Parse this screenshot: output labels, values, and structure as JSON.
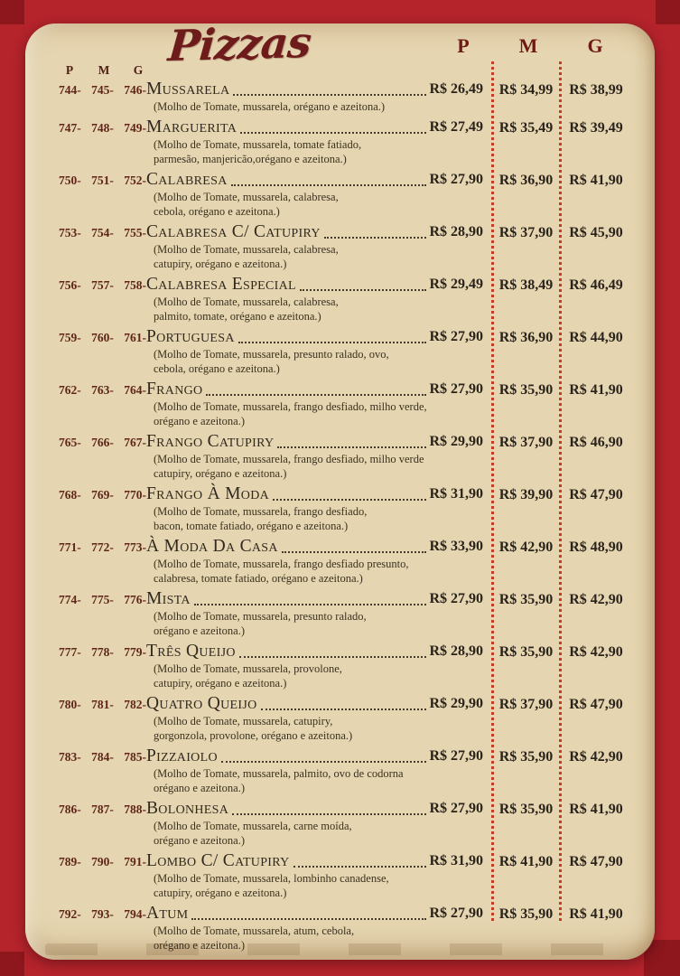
{
  "header": {
    "title": "Pizzas",
    "left_size_headers": [
      "P",
      "M",
      "G"
    ],
    "right_size_headers": [
      "P",
      "M",
      "G"
    ]
  },
  "colors": {
    "frame_red": "#b5232b",
    "frame_red_dark": "#8e161d",
    "parchment": "#e5d5b0",
    "title_maroon": "#6e1c1b",
    "code_brown": "#5f2519",
    "text_dark": "#2a231c",
    "divider_dotted_red": "#c63b26"
  },
  "menu": {
    "items": [
      {
        "codes": [
          "744-",
          "745-",
          "746-"
        ],
        "name": "Mussarela",
        "desc": [
          "(Molho de Tomate, mussarela, orégano e azeitona.)"
        ],
        "price_p": "R$ 26,49",
        "price_m": "R$ 34,99",
        "price_g": "R$ 38,99"
      },
      {
        "codes": [
          "747-",
          "748-",
          "749-"
        ],
        "name": "Marguerita",
        "desc": [
          "(Molho de Tomate, mussarela, tomate fatiado,",
          "parmesão, manjericão,orégano e azeitona.)"
        ],
        "price_p": "R$ 27,49",
        "price_m": "R$ 35,49",
        "price_g": "R$ 39,49"
      },
      {
        "codes": [
          "750-",
          "751-",
          "752-"
        ],
        "name": "Calabresa",
        "desc": [
          "(Molho de Tomate, mussarela, calabresa,",
          "cebola, orégano e azeitona.)"
        ],
        "price_p": "R$ 27,90",
        "price_m": "R$ 36,90",
        "price_g": "R$ 41,90"
      },
      {
        "codes": [
          "753-",
          "754-",
          "755-"
        ],
        "name": "Calabresa C/ Catupiry",
        "desc": [
          "(Molho de Tomate, mussarela, calabresa,",
          "catupiry, orégano e azeitona.)"
        ],
        "price_p": "R$ 28,90",
        "price_m": "R$ 37,90",
        "price_g": "R$ 45,90"
      },
      {
        "codes": [
          "756-",
          "757-",
          "758-"
        ],
        "name": "Calabresa Especial",
        "desc": [
          "(Molho de Tomate, mussarela, calabresa,",
          "palmito, tomate, orégano e azeitona.)"
        ],
        "price_p": "R$ 29,49",
        "price_m": "R$ 38,49",
        "price_g": "R$ 46,49"
      },
      {
        "codes": [
          "759-",
          "760-",
          "761-"
        ],
        "name": "Portuguesa",
        "desc": [
          "(Molho de Tomate, mussarela, presunto ralado, ovo,",
          "cebola, orégano e azeitona.)"
        ],
        "price_p": "R$ 27,90",
        "price_m": "R$ 36,90",
        "price_g": "R$ 44,90"
      },
      {
        "codes": [
          "762-",
          "763-",
          "764-"
        ],
        "name": "Frango",
        "desc": [
          "(Molho de Tomate, mussarela, frango desfiado, milho verde,",
          "orégano e azeitona.)"
        ],
        "price_p": "R$ 27,90",
        "price_m": "R$ 35,90",
        "price_g": "R$ 41,90"
      },
      {
        "codes": [
          "765-",
          "766-",
          "767-"
        ],
        "name": "Frango Catupiry",
        "desc": [
          "(Molho de Tomate, mussarela, frango desfiado, milho verde",
          "catupiry, orégano e azeitona.)"
        ],
        "price_p": "R$ 29,90",
        "price_m": "R$ 37,90",
        "price_g": "R$ 46,90"
      },
      {
        "codes": [
          "768-",
          "769-",
          "770-"
        ],
        "name": "Frango À Moda",
        "desc": [
          "(Molho de Tomate, mussarela, frango desfiado,",
          "bacon, tomate fatiado, orégano e azeitona.)"
        ],
        "price_p": "R$ 31,90",
        "price_m": "R$ 39,90",
        "price_g": "R$ 47,90"
      },
      {
        "codes": [
          "771-",
          "772-",
          "773-"
        ],
        "name": "À Moda Da Casa",
        "desc": [
          "(Molho de Tomate, mussarela, frango desfiado presunto,",
          "calabresa, tomate fatiado, orégano e azeitona.)"
        ],
        "price_p": "R$ 33,90",
        "price_m": "R$ 42,90",
        "price_g": "R$ 48,90"
      },
      {
        "codes": [
          "774-",
          "775-",
          "776-"
        ],
        "name": "Mista",
        "desc": [
          "(Molho de Tomate, mussarela, presunto ralado,",
          "orégano e azeitona.)"
        ],
        "price_p": "R$ 27,90",
        "price_m": "R$ 35,90",
        "price_g": "R$ 42,90"
      },
      {
        "codes": [
          "777-",
          "778-",
          "779-"
        ],
        "name": "Três Queijo",
        "desc": [
          "(Molho de Tomate, mussarela, provolone,",
          "catupiry, orégano e azeitona.)"
        ],
        "price_p": "R$ 28,90",
        "price_m": "R$ 35,90",
        "price_g": "R$ 42,90"
      },
      {
        "codes": [
          "780-",
          "781-",
          "782-"
        ],
        "name": "Quatro Queijo",
        "desc": [
          "(Molho de Tomate, mussarela, catupiry,",
          "gorgonzola, provolone, orégano e azeitona.)"
        ],
        "price_p": "R$ 29,90",
        "price_m": "R$ 37,90",
        "price_g": "R$ 47,90"
      },
      {
        "codes": [
          "783-",
          "784-",
          "785-"
        ],
        "name": "Pizzaiolo",
        "desc": [
          "(Molho de Tomate, mussarela, palmito, ovo de codorna",
          "orégano e azeitona.)"
        ],
        "price_p": "R$ 27,90",
        "price_m": "R$ 35,90",
        "price_g": "R$ 42,90"
      },
      {
        "codes": [
          "786-",
          "787-",
          "788-"
        ],
        "name": "Bolonhesa",
        "desc": [
          "(Molho de Tomate, mussarela, carne moída,",
          "orégano e azeitona.)"
        ],
        "price_p": "R$ 27,90",
        "price_m": "R$ 35,90",
        "price_g": "R$ 41,90"
      },
      {
        "codes": [
          "789-",
          "790-",
          "791-"
        ],
        "name": "Lombo C/ Catupiry",
        "desc": [
          "(Molho de Tomate, mussarela, lombinho canadense,",
          "catupiry, orégano e azeitona.)"
        ],
        "price_p": "R$ 31,90",
        "price_m": "R$ 41,90",
        "price_g": "R$ 47,90"
      },
      {
        "codes": [
          "792-",
          "793-",
          "794-"
        ],
        "name": "Atum",
        "desc": [
          "(Molho de Tomate, mussarela, atum, cebola,",
          "orégano e azeitona.)"
        ],
        "price_p": "R$ 27,90",
        "price_m": "R$ 35,90",
        "price_g": "R$ 41,90"
      }
    ]
  }
}
